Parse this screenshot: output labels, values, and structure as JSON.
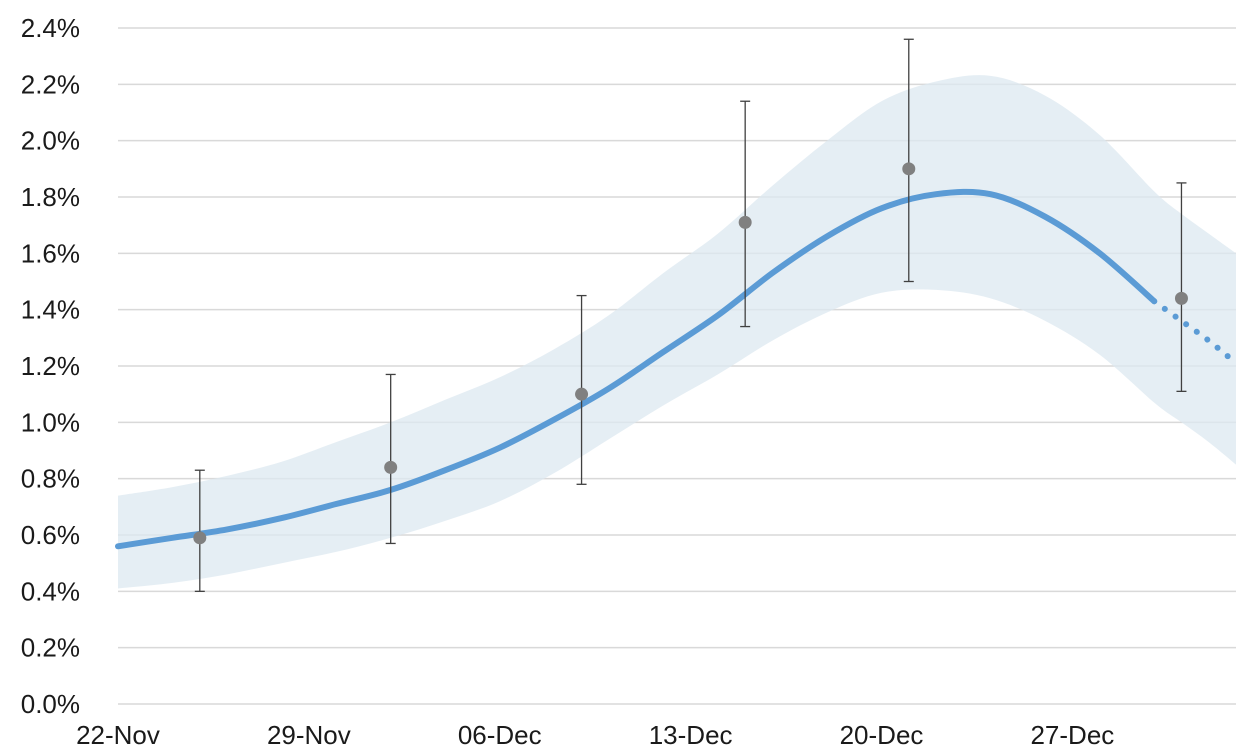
{
  "chart_data": {
    "type": "line",
    "title": "",
    "xlabel": "",
    "ylabel": "",
    "x_ticks": [
      "22-Nov",
      "29-Nov",
      "06-Dec",
      "13-Dec",
      "20-Dec",
      "27-Dec"
    ],
    "x_tick_dates": [
      "2020-11-22",
      "2020-11-29",
      "2020-12-06",
      "2020-12-13",
      "2020-12-20",
      "2020-12-27"
    ],
    "xlim": [
      "2020-11-22",
      "2021-01-02"
    ],
    "y_ticks": [
      "0.0%",
      "0.2%",
      "0.4%",
      "0.6%",
      "0.8%",
      "1.0%",
      "1.2%",
      "1.4%",
      "1.6%",
      "1.8%",
      "2.0%",
      "2.2%",
      "2.4%"
    ],
    "ylim": [
      0,
      2.4
    ],
    "grid": true,
    "legend": "none",
    "modelled_estimate": {
      "x": [
        "2020-11-22",
        "2020-11-24",
        "2020-11-26",
        "2020-11-28",
        "2020-11-30",
        "2020-12-02",
        "2020-12-04",
        "2020-12-06",
        "2020-12-08",
        "2020-12-10",
        "2020-12-12",
        "2020-12-14",
        "2020-12-16",
        "2020-12-18",
        "2020-12-20",
        "2020-12-22",
        "2020-12-24",
        "2020-12-26",
        "2020-12-28",
        "2020-12-30"
      ],
      "y": [
        0.56,
        0.59,
        0.62,
        0.66,
        0.71,
        0.76,
        0.83,
        0.91,
        1.01,
        1.12,
        1.25,
        1.38,
        1.53,
        1.66,
        1.76,
        1.81,
        1.81,
        1.73,
        1.6,
        1.43
      ],
      "lower": [
        0.41,
        0.43,
        0.46,
        0.5,
        0.54,
        0.59,
        0.65,
        0.72,
        0.82,
        0.94,
        1.06,
        1.17,
        1.29,
        1.39,
        1.46,
        1.47,
        1.44,
        1.36,
        1.24,
        1.07
      ],
      "upper": [
        0.74,
        0.77,
        0.81,
        0.86,
        0.93,
        1.0,
        1.08,
        1.16,
        1.26,
        1.38,
        1.53,
        1.67,
        1.84,
        2.0,
        2.14,
        2.21,
        2.23,
        2.16,
        2.02,
        1.82
      ]
    },
    "projection": {
      "x": [
        "2020-12-30",
        "2020-12-31",
        "2021-01-01",
        "2021-01-02"
      ],
      "y": [
        1.43,
        1.36,
        1.29,
        1.21
      ],
      "lower": [
        1.07,
        1.0,
        0.93,
        0.85
      ],
      "upper": [
        1.82,
        1.74,
        1.67,
        1.6
      ]
    },
    "point_estimates": {
      "x": [
        "2020-11-25",
        "2020-12-02",
        "2020-12-09",
        "2020-12-15",
        "2020-12-21",
        "2020-12-31"
      ],
      "y": [
        0.59,
        0.84,
        1.1,
        1.71,
        1.9,
        1.44
      ],
      "lower": [
        0.4,
        0.57,
        0.78,
        1.34,
        1.5,
        1.11
      ],
      "upper": [
        0.83,
        1.17,
        1.45,
        2.14,
        2.36,
        1.85
      ]
    }
  }
}
